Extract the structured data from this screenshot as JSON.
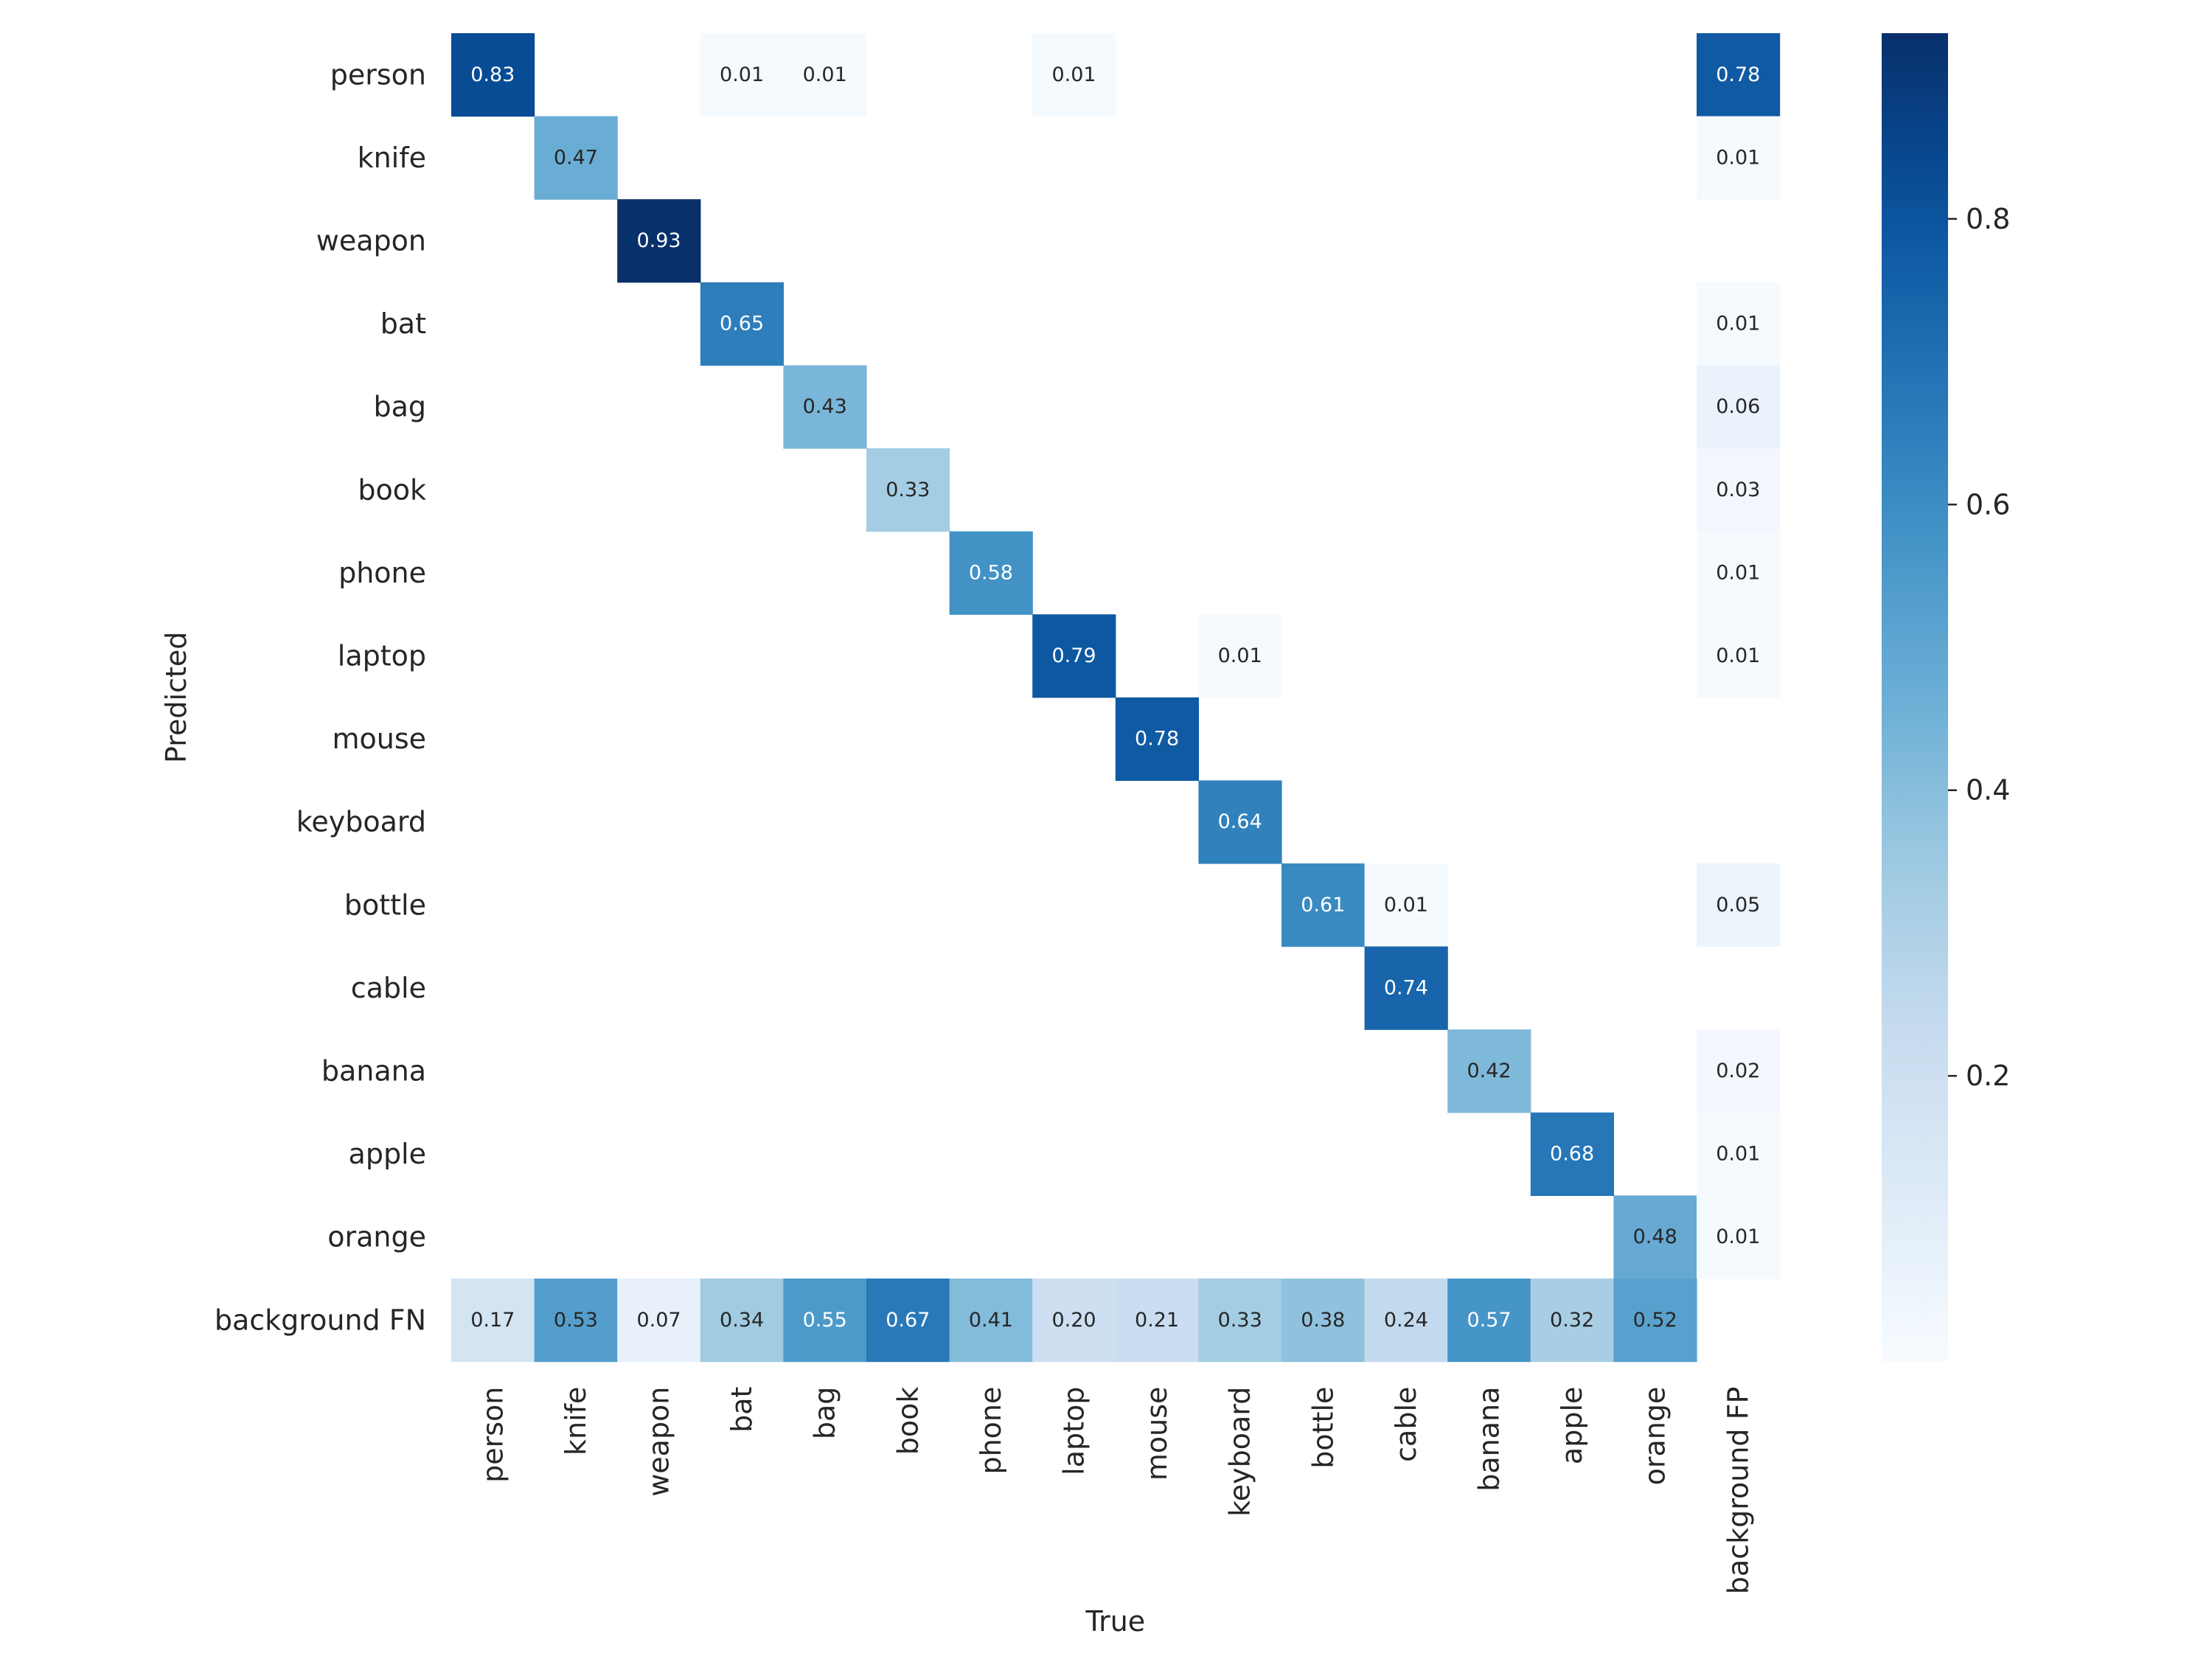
{
  "chart_data": {
    "type": "heatmap",
    "title": "",
    "xlabel": "True",
    "ylabel": "Predicted",
    "x_categories": [
      "person",
      "knife",
      "weapon",
      "bat",
      "bag",
      "book",
      "phone",
      "laptop",
      "mouse",
      "keyboard",
      "bottle",
      "cable",
      "banana",
      "apple",
      "orange",
      "background FP"
    ],
    "y_categories": [
      "person",
      "knife",
      "weapon",
      "bat",
      "bag",
      "book",
      "phone",
      "laptop",
      "mouse",
      "keyboard",
      "bottle",
      "cable",
      "banana",
      "apple",
      "orange",
      "background FN"
    ],
    "values": [
      [
        0.83,
        null,
        null,
        0.01,
        0.01,
        null,
        null,
        0.01,
        null,
        null,
        null,
        null,
        null,
        null,
        null,
        0.78
      ],
      [
        null,
        0.47,
        null,
        null,
        null,
        null,
        null,
        null,
        null,
        null,
        null,
        null,
        null,
        null,
        null,
        0.01
      ],
      [
        null,
        null,
        0.93,
        null,
        null,
        null,
        null,
        null,
        null,
        null,
        null,
        null,
        null,
        null,
        null,
        null
      ],
      [
        null,
        null,
        null,
        0.65,
        null,
        null,
        null,
        null,
        null,
        null,
        null,
        null,
        null,
        null,
        null,
        0.01
      ],
      [
        null,
        null,
        null,
        null,
        0.43,
        null,
        null,
        null,
        null,
        null,
        null,
        null,
        null,
        null,
        null,
        0.06
      ],
      [
        null,
        null,
        null,
        null,
        null,
        0.33,
        null,
        null,
        null,
        null,
        null,
        null,
        null,
        null,
        null,
        0.03
      ],
      [
        null,
        null,
        null,
        null,
        null,
        null,
        0.58,
        null,
        null,
        null,
        null,
        null,
        null,
        null,
        null,
        0.01
      ],
      [
        null,
        null,
        null,
        null,
        null,
        null,
        null,
        0.79,
        null,
        0.01,
        null,
        null,
        null,
        null,
        null,
        0.01
      ],
      [
        null,
        null,
        null,
        null,
        null,
        null,
        null,
        null,
        0.78,
        null,
        null,
        null,
        null,
        null,
        null,
        null
      ],
      [
        null,
        null,
        null,
        null,
        null,
        null,
        null,
        null,
        null,
        0.64,
        null,
        null,
        null,
        null,
        null,
        null
      ],
      [
        null,
        null,
        null,
        null,
        null,
        null,
        null,
        null,
        null,
        null,
        0.61,
        0.01,
        null,
        null,
        null,
        0.05
      ],
      [
        null,
        null,
        null,
        null,
        null,
        null,
        null,
        null,
        null,
        null,
        null,
        0.74,
        null,
        null,
        null,
        null
      ],
      [
        null,
        null,
        null,
        null,
        null,
        null,
        null,
        null,
        null,
        null,
        null,
        null,
        0.42,
        null,
        null,
        0.02
      ],
      [
        null,
        null,
        null,
        null,
        null,
        null,
        null,
        null,
        null,
        null,
        null,
        null,
        null,
        0.68,
        null,
        0.01
      ],
      [
        null,
        null,
        null,
        null,
        null,
        null,
        null,
        null,
        null,
        null,
        null,
        null,
        null,
        null,
        0.48,
        0.01
      ],
      [
        0.17,
        0.53,
        0.07,
        0.34,
        0.55,
        0.67,
        0.41,
        0.2,
        0.21,
        0.33,
        0.38,
        0.24,
        0.57,
        0.32,
        0.52,
        null
      ]
    ],
    "colormap": "Blues",
    "vmin": 0.0,
    "vmax": 0.93,
    "value_format": "0.00",
    "colorbar_ticks": [
      0.2,
      0.4,
      0.6,
      0.8
    ],
    "colorbar_tick_labels": [
      "0.2",
      "0.4",
      "0.6",
      "0.8"
    ]
  }
}
